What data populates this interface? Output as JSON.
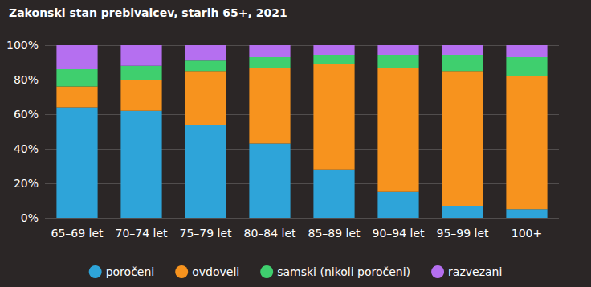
{
  "chart_data": {
    "type": "bar",
    "title": "Zakonski stan prebivalcev, starih 65+, 2021",
    "categories": [
      "65–69 let",
      "70–74 let",
      "75–79 let",
      "80–84 let",
      "85–89 let",
      "90–94 let",
      "95–99 let",
      "100+"
    ],
    "series": [
      {
        "name": "poročeni",
        "color": "#2ea4d9",
        "values": [
          64,
          62,
          54,
          43,
          28,
          15,
          7,
          5
        ]
      },
      {
        "name": "ovdoveli",
        "color": "#f7931e",
        "values": [
          12,
          18,
          31,
          44,
          61,
          72,
          78,
          77
        ]
      },
      {
        "name": "samski (nikoli poročeni)",
        "color": "#3fcf6e",
        "values": [
          10,
          8,
          6,
          6,
          5,
          7,
          9,
          11
        ]
      },
      {
        "name": "razvezani",
        "color": "#b56ff0",
        "values": [
          14,
          12,
          9,
          7,
          6,
          6,
          6,
          7
        ]
      }
    ],
    "ylim": [
      0,
      100
    ],
    "yticks": [
      {
        "value": 0,
        "label": "0%"
      },
      {
        "value": 20,
        "label": "20%"
      },
      {
        "value": 40,
        "label": "40%"
      },
      {
        "value": 60,
        "label": "60%"
      },
      {
        "value": 80,
        "label": "80%"
      },
      {
        "value": 100,
        "label": "100%"
      }
    ],
    "stacked": true,
    "grid": true,
    "legend": "bottom"
  }
}
